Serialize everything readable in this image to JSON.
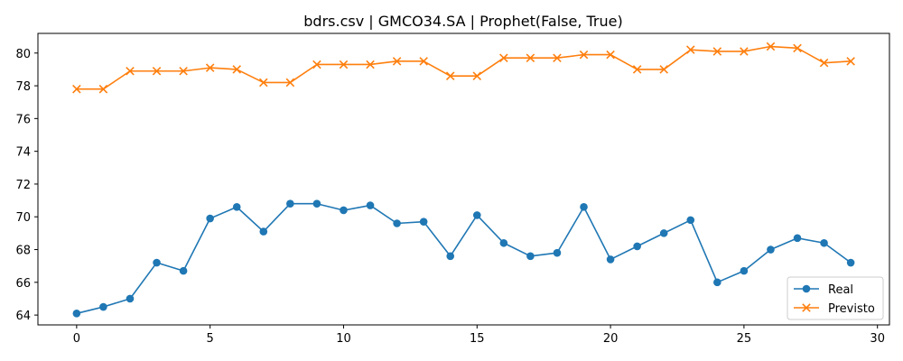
{
  "chart_data": {
    "type": "line",
    "title": "bdrs.csv | GMCO34.SA | Prophet(False, True)",
    "xlabel": "",
    "ylabel": "",
    "xlim": [
      -1.45,
      30.45
    ],
    "ylim": [
      63.4,
      81.2
    ],
    "xticks": [
      0,
      5,
      10,
      15,
      20,
      25,
      30
    ],
    "yticks": [
      64,
      66,
      68,
      70,
      72,
      74,
      76,
      78,
      80
    ],
    "grid": false,
    "legend": "lower-right",
    "x": [
      0,
      1,
      2,
      3,
      4,
      5,
      6,
      7,
      8,
      9,
      10,
      11,
      12,
      13,
      14,
      15,
      16,
      17,
      18,
      19,
      20,
      21,
      22,
      23,
      24,
      25,
      26,
      27,
      28,
      29
    ],
    "series": [
      {
        "name": "Real",
        "color": "#1f77b4",
        "marker": "circle",
        "values": [
          64.1,
          64.5,
          65.0,
          67.2,
          66.7,
          69.9,
          70.6,
          69.1,
          70.8,
          70.8,
          70.4,
          70.7,
          69.6,
          69.7,
          67.6,
          70.1,
          68.4,
          67.6,
          67.8,
          70.6,
          67.4,
          68.2,
          69.0,
          69.8,
          66.0,
          66.7,
          68.0,
          68.7,
          68.4,
          67.2
        ]
      },
      {
        "name": "Previsto",
        "color": "#ff7f0e",
        "marker": "x",
        "values": [
          77.8,
          77.8,
          78.9,
          78.9,
          78.9,
          79.1,
          79.0,
          78.2,
          78.2,
          79.3,
          79.3,
          79.3,
          79.5,
          79.5,
          78.6,
          78.6,
          79.7,
          79.7,
          79.7,
          79.9,
          79.9,
          79.0,
          79.0,
          80.2,
          80.1,
          80.1,
          80.4,
          80.3,
          79.4,
          79.5
        ]
      }
    ]
  }
}
